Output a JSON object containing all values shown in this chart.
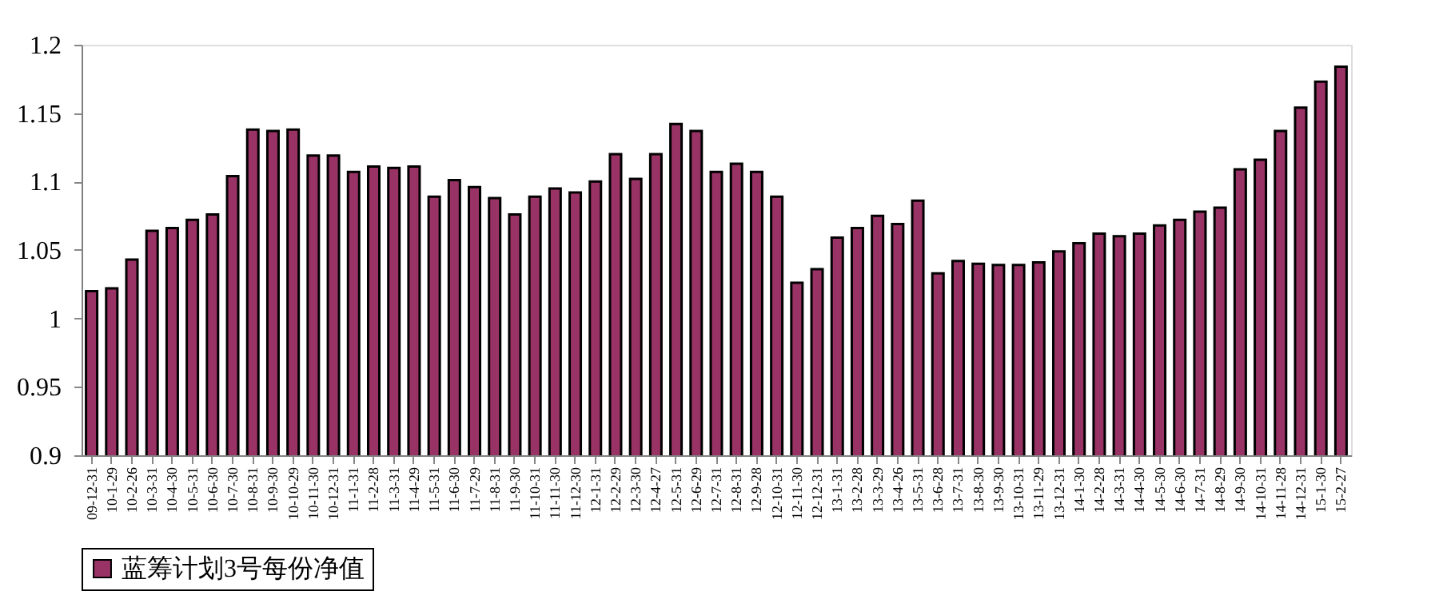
{
  "chart_data": {
    "type": "bar",
    "categories": [
      "09-12-31",
      "10-1-29",
      "10-2-26",
      "10-3-31",
      "10-4-30",
      "10-5-31",
      "10-6-30",
      "10-7-30",
      "10-8-31",
      "10-9-30",
      "10-10-29",
      "10-11-30",
      "10-12-31",
      "11-1-31",
      "11-2-28",
      "11-3-31",
      "11-4-29",
      "11-5-31",
      "11-6-30",
      "11-7-29",
      "11-8-31",
      "11-9-30",
      "11-10-31",
      "11-11-30",
      "11-12-30",
      "12-1-31",
      "12-2-29",
      "12-3-30",
      "12-4-27",
      "12-5-31",
      "12-6-29",
      "12-7-31",
      "12-8-31",
      "12-9-28",
      "12-10-31",
      "12-11-30",
      "12-12-31",
      "13-1-31",
      "13-2-28",
      "13-3-29",
      "13-4-26",
      "13-5-31",
      "13-6-28",
      "13-7-31",
      "13-8-30",
      "13-9-30",
      "13-10-31",
      "13-11-29",
      "13-12-31",
      "14-1-30",
      "14-2-28",
      "14-3-31",
      "14-4-30",
      "14-5-30",
      "14-6-30",
      "14-7-31",
      "14-8-29",
      "14-9-30",
      "14-10-31",
      "14-11-28",
      "14-12-31",
      "15-1-30",
      "15-2-27"
    ],
    "series": [
      {
        "name": "蓝筹计划3号每份净值",
        "color": "#993366",
        "values": [
          1.02,
          1.022,
          1.043,
          1.064,
          1.066,
          1.072,
          1.076,
          1.104,
          1.138,
          1.137,
          1.138,
          1.119,
          1.119,
          1.107,
          1.111,
          1.11,
          1.111,
          1.089,
          1.101,
          1.096,
          1.088,
          1.076,
          1.089,
          1.095,
          1.092,
          1.1,
          1.12,
          1.102,
          1.12,
          1.142,
          1.137,
          1.107,
          1.113,
          1.107,
          1.089,
          1.026,
          1.036,
          1.059,
          1.066,
          1.075,
          1.069,
          1.086,
          1.033,
          1.042,
          1.04,
          1.039,
          1.039,
          1.041,
          1.049,
          1.055,
          1.062,
          1.06,
          1.062,
          1.068,
          1.072,
          1.078,
          1.081,
          1.109,
          1.116,
          1.137,
          1.154,
          1.173,
          1.184
        ]
      }
    ],
    "ylim": [
      0.9,
      1.2
    ],
    "yticks": [
      0.9,
      0.95,
      1,
      1.05,
      1.1,
      1.15,
      1.2
    ],
    "grid": false,
    "legend": "bottom"
  }
}
